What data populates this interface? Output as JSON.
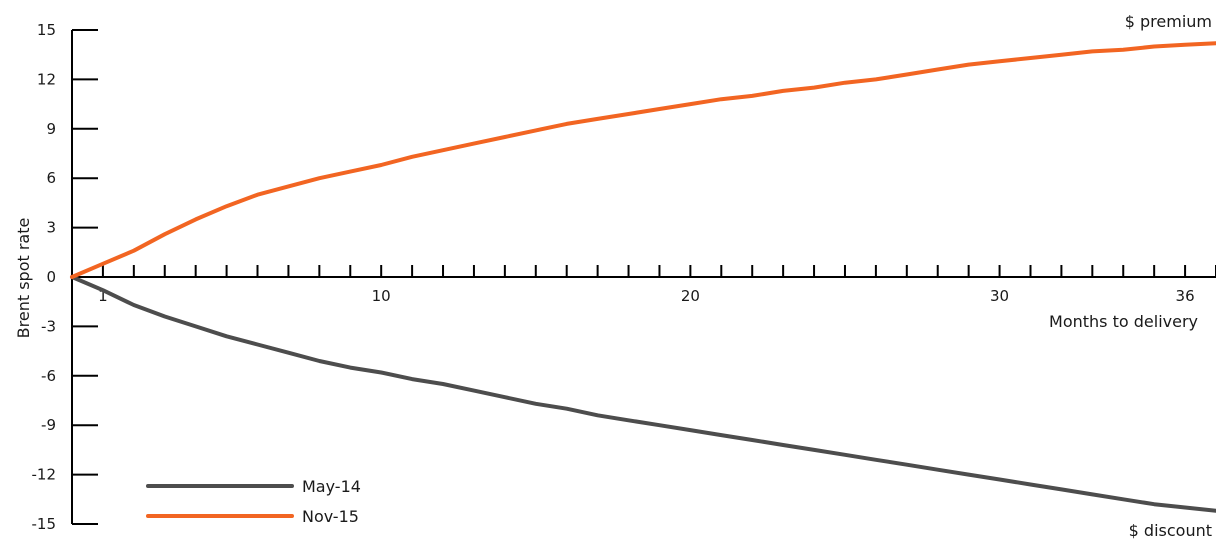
{
  "chart_data": {
    "type": "line",
    "xlabel": "Months to delivery",
    "ylabel": "Brent spot rate",
    "annotations": {
      "top_right": "$ premium",
      "bottom_right": "$ discount"
    },
    "xlim": [
      0,
      37
    ],
    "ylim": [
      -15,
      15
    ],
    "x_tick_labels": [
      1,
      10,
      20,
      30,
      36
    ],
    "x_minor_ticks": [
      0,
      1,
      2,
      3,
      4,
      5,
      6,
      7,
      8,
      9,
      10,
      11,
      12,
      13,
      14,
      15,
      16,
      17,
      18,
      19,
      20,
      21,
      22,
      23,
      24,
      25,
      26,
      27,
      28,
      29,
      30,
      31,
      32,
      33,
      34,
      35,
      36,
      37
    ],
    "y_ticks": [
      15,
      12,
      9,
      6,
      3,
      0,
      -3,
      -6,
      -9,
      -12,
      -15
    ],
    "legend_position": "bottom-left",
    "grid": false,
    "x": [
      0,
      1,
      2,
      3,
      4,
      5,
      6,
      7,
      8,
      9,
      10,
      11,
      12,
      13,
      14,
      15,
      16,
      17,
      18,
      19,
      20,
      21,
      22,
      23,
      24,
      25,
      26,
      27,
      28,
      29,
      30,
      31,
      32,
      33,
      34,
      35,
      36,
      37
    ],
    "series": [
      {
        "name": "May-14",
        "color": "#4d4d4d",
        "values": [
          0,
          -0.8,
          -1.7,
          -2.4,
          -3.0,
          -3.6,
          -4.1,
          -4.6,
          -5.1,
          -5.5,
          -5.8,
          -6.2,
          -6.5,
          -6.9,
          -7.3,
          -7.7,
          -8.0,
          -8.4,
          -8.7,
          -9.0,
          -9.3,
          -9.6,
          -9.9,
          -10.2,
          -10.5,
          -10.8,
          -11.1,
          -11.4,
          -11.7,
          -12.0,
          -12.3,
          -12.6,
          -12.9,
          -13.2,
          -13.5,
          -13.8,
          -14.0,
          -14.2
        ]
      },
      {
        "name": "Nov-15",
        "color": "#f26522",
        "values": [
          0,
          0.8,
          1.6,
          2.6,
          3.5,
          4.3,
          5.0,
          5.5,
          6.0,
          6.4,
          6.8,
          7.3,
          7.7,
          8.1,
          8.5,
          8.9,
          9.3,
          9.6,
          9.9,
          10.2,
          10.5,
          10.8,
          11.0,
          11.3,
          11.5,
          11.8,
          12.0,
          12.3,
          12.6,
          12.9,
          13.1,
          13.3,
          13.5,
          13.7,
          13.8,
          14.0,
          14.1,
          14.2
        ]
      }
    ]
  }
}
